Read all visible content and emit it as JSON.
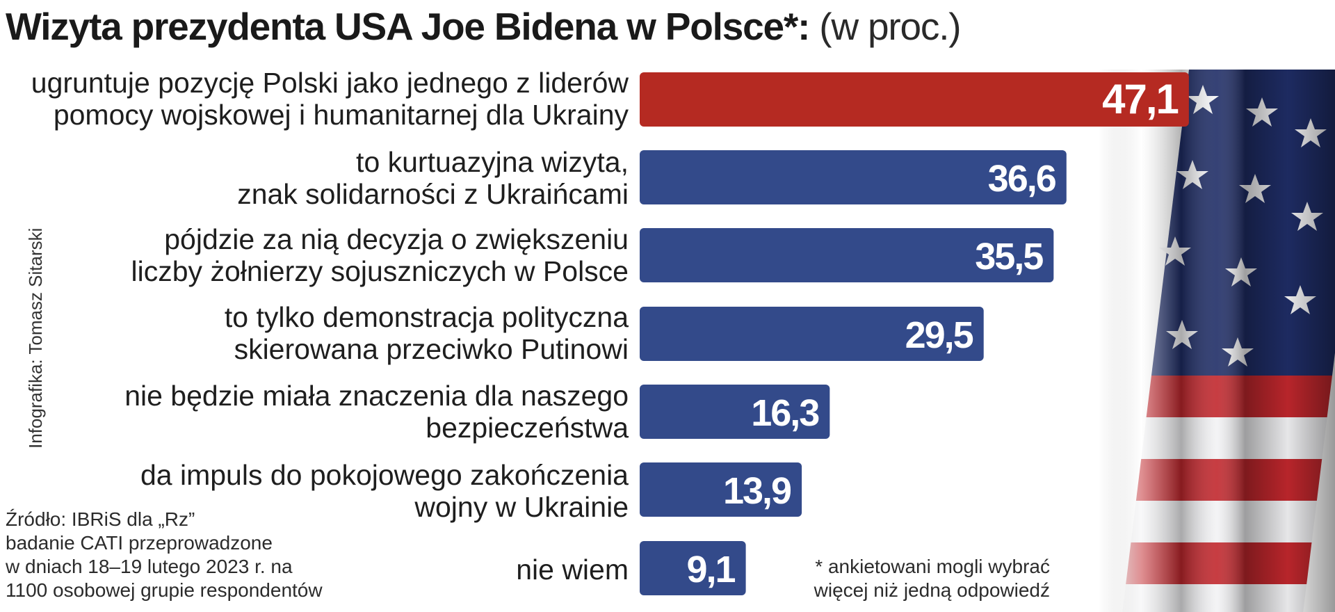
{
  "header": {
    "title_bold": "Wizyta prezydenta USA Joe Bidena w Polsce*:",
    "title_unit": "(w proc.)"
  },
  "credit": "Infografika: Tomasz Sitarski",
  "source": {
    "lines": [
      "Źródło: IBRiS dla „Rz”",
      "badanie CATI przeprowadzone",
      "w dniach 18–19 lutego 2023 r. na",
      "1100 osobowej grupie respondentów"
    ]
  },
  "footnote": {
    "lines": [
      "* ankietowani mogli wybrać",
      "więcej niż jedną odpowiedź"
    ]
  },
  "colors": {
    "highlight": "#b52a22",
    "bar": "#334a8a",
    "value_text": "#ffffff"
  },
  "chart_data": {
    "type": "bar",
    "orientation": "horizontal",
    "title": "Wizyta prezydenta USA Joe Bidena w Polsce*: (w proc.)",
    "unit": "proc.",
    "xlim": [
      0,
      50
    ],
    "categories": [
      [
        "ugruntuje pozycję Polski jako jednego z liderów",
        "pomocy wojskowej i humanitarnej dla Ukrainy"
      ],
      [
        "to kurtuazyjna wizyta,",
        "znak solidarności z Ukraińcami"
      ],
      [
        "pójdzie za nią decyzja o zwiększeniu",
        "liczby żołnierzy sojuszniczych w Polsce"
      ],
      [
        "to tylko demonstracja polityczna",
        "skierowana przeciwko Putinowi"
      ],
      [
        "nie będzie miała znaczenia dla naszego",
        "bezpieczeństwa"
      ],
      [
        "da impuls do pokojowego zakończenia",
        "wojny w Ukrainie"
      ],
      [
        "nie wiem"
      ]
    ],
    "values": [
      47.1,
      36.6,
      35.5,
      29.5,
      16.3,
      13.9,
      9.1
    ],
    "value_labels": [
      "47,1",
      "36,6",
      "35,5",
      "29,5",
      "16,3",
      "13,9",
      "9,1"
    ],
    "highlight_index": 0
  }
}
